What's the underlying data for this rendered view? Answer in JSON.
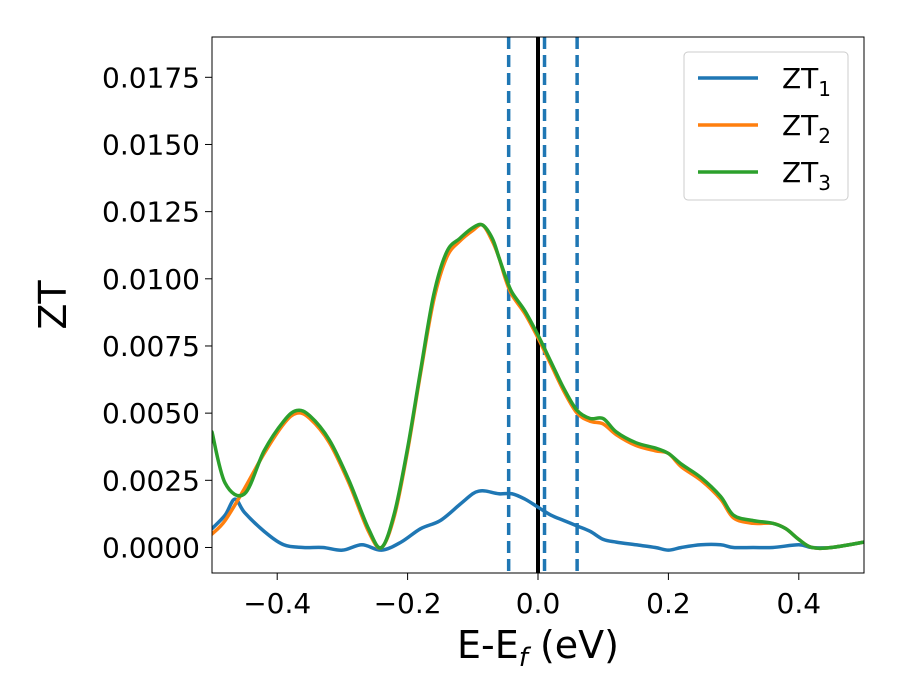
{
  "chart_data": {
    "type": "line",
    "xlabel": "E-E",
    "xlabel_sub": "f",
    "xlabel_unit": " (eV)",
    "ylabel": "ZT",
    "xlim": [
      -0.5,
      0.5
    ],
    "ylim": [
      -0.00095,
      0.019
    ],
    "xticks": [
      -0.4,
      -0.2,
      0.0,
      0.2,
      0.4
    ],
    "xtick_labels": [
      "−0.4",
      "−0.2",
      "0.0",
      "0.2",
      "0.4"
    ],
    "yticks": [
      0.0,
      0.0025,
      0.005,
      0.0075,
      0.01,
      0.0125,
      0.015,
      0.0175
    ],
    "ytick_labels": [
      "0.0000",
      "0.0025",
      "0.0050",
      "0.0075",
      "0.0100",
      "0.0125",
      "0.0150",
      "0.0175"
    ],
    "grid": false,
    "legend_position": "top-right",
    "vlines": [
      {
        "x": 0.0,
        "style": "solid",
        "color": "#000000"
      },
      {
        "x": -0.045,
        "style": "dashed",
        "color": "#1f77b4"
      },
      {
        "x": 0.01,
        "style": "dashed",
        "color": "#1f77b4"
      },
      {
        "x": 0.06,
        "style": "dashed",
        "color": "#1f77b4"
      }
    ],
    "series": [
      {
        "name": "ZT",
        "sub": "1",
        "color": "#1f77b4",
        "x": [
          -0.5,
          -0.48,
          -0.465,
          -0.45,
          -0.42,
          -0.39,
          -0.36,
          -0.33,
          -0.3,
          -0.27,
          -0.24,
          -0.21,
          -0.18,
          -0.15,
          -0.12,
          -0.1,
          -0.09,
          -0.08,
          -0.06,
          -0.04,
          -0.02,
          0.0,
          0.02,
          0.04,
          0.06,
          0.08,
          0.1,
          0.12,
          0.15,
          0.18,
          0.2,
          0.22,
          0.25,
          0.28,
          0.3,
          0.33,
          0.36,
          0.4,
          0.42,
          0.45,
          0.5
        ],
        "y": [
          0.0007,
          0.0012,
          0.0018,
          0.0013,
          0.0006,
          0.0001,
          0.0,
          0.0,
          -0.0001,
          0.0001,
          -0.0001,
          0.0002,
          0.0007,
          0.001,
          0.0016,
          0.002,
          0.0021,
          0.0021,
          0.002,
          0.002,
          0.0018,
          0.0015,
          0.0012,
          0.001,
          0.0008,
          0.0006,
          0.0003,
          0.0002,
          0.0001,
          0.0,
          -0.0001,
          0.0,
          0.0001,
          0.0001,
          0.0,
          0.0,
          0.0,
          0.0001,
          0.0,
          0.0,
          0.0002
        ]
      },
      {
        "name": "ZT",
        "sub": "2",
        "color": "#ff7f0e",
        "x": [
          -0.5,
          -0.48,
          -0.45,
          -0.42,
          -0.39,
          -0.37,
          -0.35,
          -0.32,
          -0.29,
          -0.26,
          -0.24,
          -0.22,
          -0.2,
          -0.18,
          -0.16,
          -0.14,
          -0.12,
          -0.1,
          -0.085,
          -0.07,
          -0.06,
          -0.05,
          -0.04,
          -0.02,
          0.0,
          0.02,
          0.04,
          0.06,
          0.08,
          0.1,
          0.12,
          0.15,
          0.18,
          0.2,
          0.22,
          0.25,
          0.28,
          0.3,
          0.33,
          0.36,
          0.38,
          0.4,
          0.42,
          0.45,
          0.5
        ],
        "y": [
          0.0005,
          0.001,
          0.0022,
          0.0035,
          0.0046,
          0.005,
          0.0048,
          0.0039,
          0.0024,
          0.0006,
          0.0,
          0.0012,
          0.0036,
          0.0065,
          0.0092,
          0.0108,
          0.0114,
          0.0118,
          0.012,
          0.0114,
          0.0108,
          0.01,
          0.0094,
          0.0087,
          0.0078,
          0.0068,
          0.0058,
          0.005,
          0.0047,
          0.0046,
          0.0042,
          0.0038,
          0.0036,
          0.0035,
          0.003,
          0.0025,
          0.0018,
          0.0011,
          0.0009,
          0.0009,
          0.0007,
          0.0003,
          0.0,
          0.0,
          0.0002
        ]
      },
      {
        "name": "ZT",
        "sub": "3",
        "color": "#2ca02c",
        "x": [
          -0.5,
          -0.48,
          -0.45,
          -0.42,
          -0.39,
          -0.37,
          -0.35,
          -0.32,
          -0.29,
          -0.26,
          -0.24,
          -0.22,
          -0.2,
          -0.18,
          -0.16,
          -0.14,
          -0.12,
          -0.1,
          -0.085,
          -0.07,
          -0.06,
          -0.05,
          -0.04,
          -0.02,
          0.0,
          0.02,
          0.04,
          0.06,
          0.08,
          0.1,
          0.12,
          0.15,
          0.18,
          0.2,
          0.22,
          0.25,
          0.28,
          0.3,
          0.33,
          0.36,
          0.38,
          0.4,
          0.42,
          0.45,
          0.5
        ],
        "y": [
          0.0043,
          0.0024,
          0.002,
          0.0036,
          0.0047,
          0.0051,
          0.0049,
          0.004,
          0.0025,
          0.0007,
          0.0,
          0.0013,
          0.0037,
          0.0066,
          0.0094,
          0.011,
          0.0115,
          0.0119,
          0.012,
          0.0115,
          0.0108,
          0.0101,
          0.0095,
          0.0088,
          0.0079,
          0.0069,
          0.0059,
          0.0051,
          0.0048,
          0.0048,
          0.0043,
          0.0039,
          0.0037,
          0.0035,
          0.0031,
          0.0026,
          0.0019,
          0.0012,
          0.001,
          0.0009,
          0.0007,
          0.0003,
          0.0,
          0.0,
          0.0002
        ]
      }
    ]
  }
}
